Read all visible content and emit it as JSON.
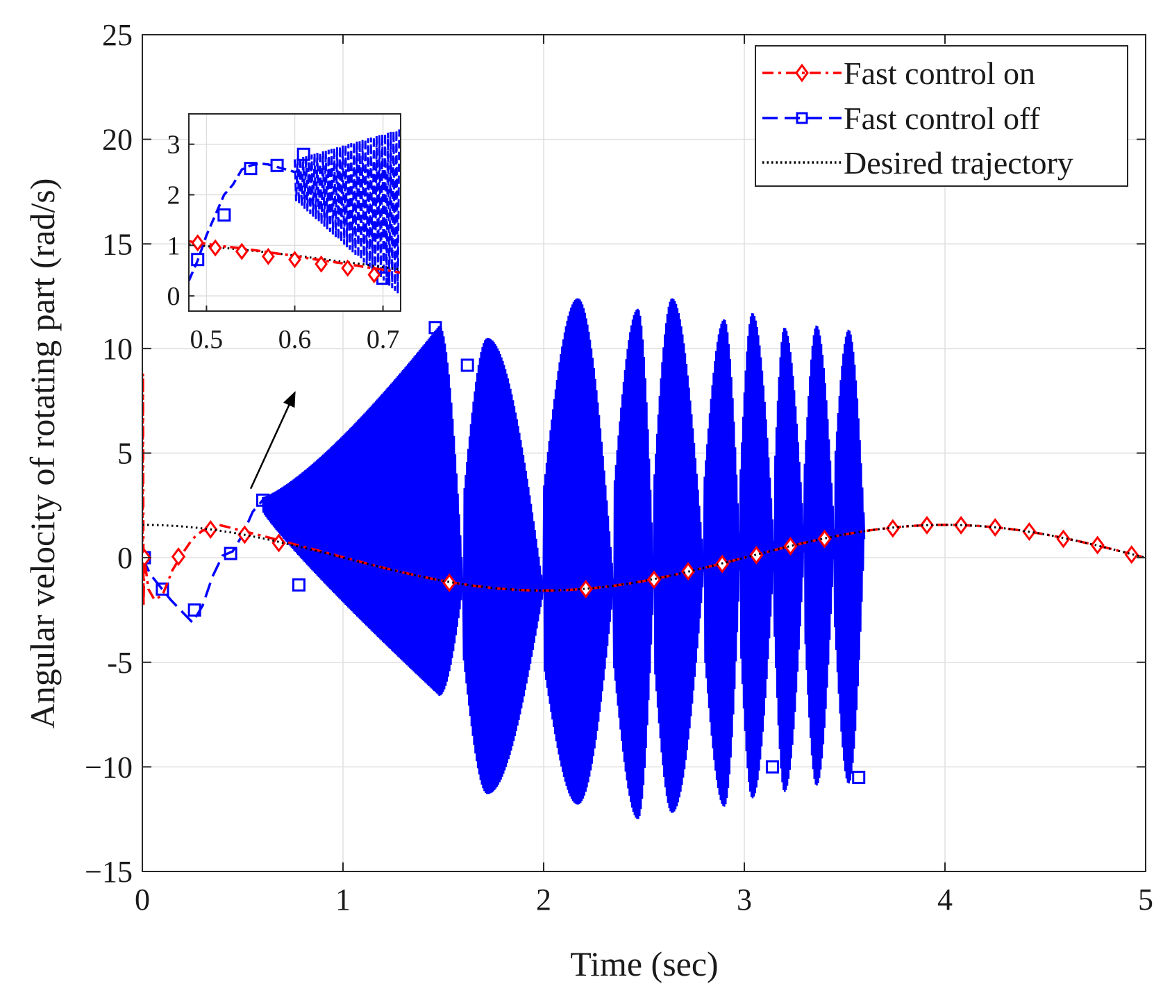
{
  "chart_data": [
    {
      "type": "line",
      "title": "",
      "xlabel": "Time (sec)",
      "ylabel": "Angular velocity of rotating part (rad/s)",
      "xlim": [
        0,
        5
      ],
      "ylim": [
        -15,
        25
      ],
      "xticks": [
        0,
        1,
        2,
        3,
        4,
        5
      ],
      "xtick_labels": [
        "0",
        "1",
        "2",
        "3",
        "4",
        "5"
      ],
      "yticks": [
        -15,
        -10,
        -5,
        0,
        5,
        10,
        15,
        20,
        25
      ],
      "ytick_labels": [
        "−15",
        "−10",
        "-5",
        "0",
        "5",
        "10",
        "15",
        "20",
        "25"
      ],
      "grid": true,
      "legend_position": "top-right",
      "series": [
        {
          "name": "Fast control on",
          "color": "#ff0000",
          "line_style": "dash-dot",
          "marker": "diamond",
          "description": "Tracks desired trajectory after an initial transient (spike near t=0 up to ~8.8 and down to ~-2.2, dip to ~-2 at 0.05 s).",
          "transient": [
            [
              0,
              0
            ],
            [
              0.003,
              8.8
            ],
            [
              0.006,
              -2.3
            ],
            [
              0.01,
              0
            ],
            [
              0.03,
              -1.5
            ],
            [
              0.06,
              -2.0
            ],
            [
              0.1,
              -1.8
            ],
            [
              0.15,
              -0.6
            ],
            [
              0.2,
              0.2
            ],
            [
              0.25,
              0.9
            ],
            [
              0.3,
              1.3
            ],
            [
              0.36,
              1.35
            ]
          ],
          "marker_points": [
            [
              0.01,
              0
            ],
            [
              0.18,
              0.05
            ],
            [
              0.34,
              1.35
            ],
            [
              0.51,
              1.1
            ],
            [
              0.68,
              0.7
            ],
            [
              1.53,
              -1.2
            ],
            [
              2.21,
              -1.5
            ],
            [
              2.55,
              -1.05
            ],
            [
              2.72,
              -0.65
            ],
            [
              2.89,
              -0.3
            ],
            [
              3.06,
              0.12
            ],
            [
              3.23,
              0.55
            ],
            [
              3.4,
              0.9
            ],
            [
              3.74,
              1.4
            ],
            [
              3.91,
              1.55
            ],
            [
              4.08,
              1.55
            ],
            [
              4.25,
              1.45
            ],
            [
              4.42,
              1.25
            ],
            [
              4.59,
              0.9
            ],
            [
              4.76,
              0.6
            ],
            [
              4.93,
              0.15
            ]
          ]
        },
        {
          "name": "Fast control off",
          "color": "#0000ff",
          "line_style": "dashed",
          "marker": "square",
          "description": "Diverging high-frequency oscillation; envelope grows from ~3 at 0.6 s to ~11 at 1.45 s, then beating lobes reaching about ±12 until 3.6 s where the trace ends.",
          "transient": [
            [
              0,
              0
            ],
            [
              0.04,
              -0.8
            ],
            [
              0.09,
              -1.4
            ],
            [
              0.14,
              -2.0
            ],
            [
              0.2,
              -2.6
            ],
            [
              0.25,
              -3.1
            ],
            [
              0.3,
              -2.3
            ],
            [
              0.35,
              -0.9
            ],
            [
              0.4,
              0.1
            ],
            [
              0.45,
              0.3
            ],
            [
              0.5,
              1.1
            ],
            [
              0.55,
              2.2
            ],
            [
              0.6,
              2.75
            ],
            [
              0.65,
              2.9
            ]
          ],
          "envelope_lobes": [
            {
              "t_start": 0.6,
              "t_end": 1.6,
              "t_max": 1.48,
              "min": -6.6,
              "max": 11.1
            },
            {
              "t_start": 1.6,
              "t_end": 2.0,
              "t_max": 1.72,
              "min": -11.3,
              "max": 10.5
            },
            {
              "t_start": 2.0,
              "t_end": 2.35,
              "t_max": 2.17,
              "min": -11.8,
              "max": 12.4
            },
            {
              "t_start": 2.35,
              "t_end": 2.55,
              "t_max": 2.47,
              "min": -12.5,
              "max": 11.9
            },
            {
              "t_start": 2.55,
              "t_end": 2.8,
              "t_max": 2.64,
              "min": -12.2,
              "max": 12.4
            },
            {
              "t_start": 2.8,
              "t_end": 2.98,
              "t_max": 2.9,
              "min": -11.9,
              "max": 11.4
            },
            {
              "t_start": 2.98,
              "t_end": 3.15,
              "t_max": 3.04,
              "min": -11.5,
              "max": 11.7
            },
            {
              "t_start": 3.15,
              "t_end": 3.3,
              "t_max": 3.2,
              "min": -11.2,
              "max": 11.0
            },
            {
              "t_start": 3.3,
              "t_end": 3.45,
              "t_max": 3.36,
              "min": -10.9,
              "max": 11.1
            },
            {
              "t_start": 3.45,
              "t_end": 3.6,
              "t_max": 3.52,
              "min": -10.8,
              "max": 10.9
            }
          ],
          "marker_points": [
            [
              0.01,
              0
            ],
            [
              0.1,
              -1.5
            ],
            [
              0.26,
              -2.5
            ],
            [
              0.44,
              0.2
            ],
            [
              0.6,
              2.75
            ],
            [
              0.78,
              -1.3
            ],
            [
              1.46,
              11.0
            ],
            [
              1.62,
              9.2
            ],
            [
              2.28,
              1.3
            ],
            [
              2.48,
              -3.8
            ],
            [
              3.14,
              -10.0
            ],
            [
              3.34,
              0.5
            ],
            [
              3.57,
              -10.5
            ]
          ]
        },
        {
          "name": "Desired trajectory",
          "color": "#000000",
          "line_style": "dotted",
          "marker": "none",
          "description": "Cosine reference w(t) = 1.57*cos(2*pi*t/4), period 4 s.",
          "amplitude": 1.57,
          "period": 4,
          "x": [
            0,
            0.5,
            1,
            1.5,
            2,
            2.5,
            3,
            3.5,
            4,
            4.5,
            5
          ],
          "values": [
            1.57,
            1.11,
            0,
            -1.11,
            -1.57,
            -1.11,
            0,
            1.11,
            1.57,
            1.11,
            0
          ]
        }
      ],
      "annotation": {
        "type": "arrow",
        "from": [
          0.54,
          3.3
        ],
        "to": [
          0.76,
          7.9
        ],
        "meaning": "points to zoomed inset"
      }
    },
    {
      "type": "line",
      "title": "",
      "inset": true,
      "xlim": [
        0.48,
        0.72
      ],
      "ylim": [
        -0.3,
        3.6
      ],
      "xticks": [
        0.5,
        0.6,
        0.7
      ],
      "xtick_labels": [
        "0.5",
        "0.6",
        "0.7"
      ],
      "yticks": [
        0,
        1,
        2,
        3
      ],
      "ytick_labels": [
        "0",
        "1",
        "2",
        "3"
      ],
      "grid": true,
      "series": [
        {
          "name": "Fast control on",
          "color": "#ff0000",
          "x": [
            0.48,
            0.5,
            0.52,
            0.54,
            0.56,
            0.58,
            0.6,
            0.62,
            0.64,
            0.66,
            0.68,
            0.7,
            0.72
          ],
          "values": [
            1.08,
            1.03,
            0.98,
            0.94,
            0.89,
            0.84,
            0.79,
            0.73,
            0.68,
            0.63,
            0.57,
            0.52,
            0.46
          ],
          "marker_points": [
            [
              0.49,
              1.05
            ],
            [
              0.51,
              0.95
            ],
            [
              0.54,
              0.88
            ],
            [
              0.57,
              0.78
            ],
            [
              0.6,
              0.72
            ],
            [
              0.63,
              0.63
            ],
            [
              0.66,
              0.55
            ],
            [
              0.69,
              0.42
            ]
          ]
        },
        {
          "name": "Fast control off",
          "color": "#0000ff",
          "x": [
            0.48,
            0.49,
            0.5,
            0.51,
            0.52,
            0.53,
            0.54,
            0.55,
            0.56,
            0.57,
            0.58,
            0.59,
            0.6,
            0.61
          ],
          "values": [
            0.3,
            0.7,
            1.2,
            1.6,
            2.0,
            2.2,
            2.5,
            2.58,
            2.62,
            2.6,
            2.55,
            2.5,
            2.45,
            2.5
          ],
          "oscillation_envelope": {
            "t_start": 0.6,
            "t_end": 0.72,
            "min_start": 1.9,
            "max_start": 2.7,
            "min_end": 0.0,
            "max_end": 3.3
          },
          "marker_points": [
            [
              0.49,
              0.72
            ],
            [
              0.52,
              1.6
            ],
            [
              0.55,
              2.52
            ],
            [
              0.58,
              2.58
            ],
            [
              0.61,
              2.8
            ],
            [
              0.7,
              0.35
            ]
          ]
        },
        {
          "name": "Desired trajectory",
          "color": "#000000",
          "x": [
            0.48,
            0.52,
            0.56,
            0.6,
            0.64,
            0.68,
            0.72
          ],
          "values": [
            1.02,
            0.95,
            0.88,
            0.8,
            0.71,
            0.62,
            0.52
          ]
        }
      ]
    }
  ]
}
